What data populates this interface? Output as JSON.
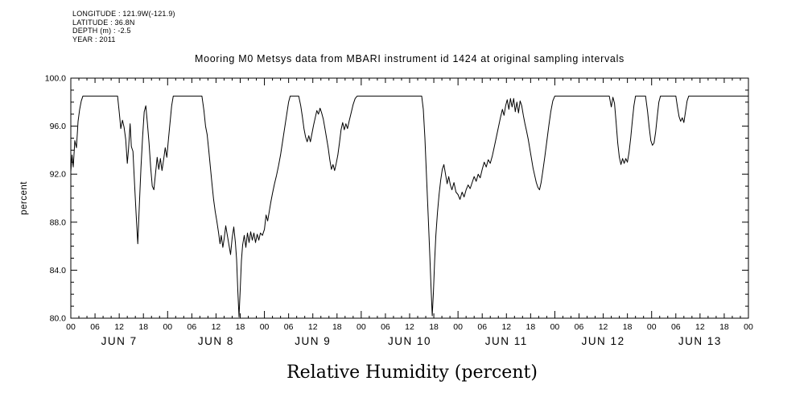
{
  "metadata": {
    "longitude": "LONGITUDE : 121.9W(-121.9)",
    "latitude": "LATITUDE : 36.8N",
    "depth": "DEPTH (m) : -2.5",
    "year": "YEAR : 2011"
  },
  "title": "Mooring M0 Metsys data from MBARI instrument id 1424 at original sampling intervals",
  "chart_data": {
    "type": "line",
    "title": "Mooring M0 Metsys data from MBARI instrument id 1424 at original sampling intervals",
    "xlabel": "Relative Humidity (percent)",
    "ylabel": "percent",
    "ylim": [
      80.0,
      100.0
    ],
    "y_ticks": [
      80,
      84,
      88,
      92,
      96,
      100
    ],
    "y_tick_labels": [
      "80.0",
      "84.0",
      "88.0",
      "92.0",
      "96.0",
      "100.0"
    ],
    "x_range_hours": [
      0,
      168
    ],
    "x_major_tick_hours": 6,
    "x_tick_labels": [
      "00",
      "06",
      "12",
      "18",
      "00",
      "06",
      "12",
      "18",
      "00",
      "06",
      "12",
      "18",
      "00",
      "06",
      "12",
      "18",
      "00",
      "06",
      "12",
      "18",
      "00",
      "06",
      "12",
      "18",
      "00",
      "06",
      "12",
      "18",
      "00"
    ],
    "day_labels": [
      "JUN 7",
      "JUN 8",
      "JUN 9",
      "JUN 10",
      "JUN 11",
      "JUN 12",
      "JUN 13"
    ],
    "grid": false,
    "legend": "none",
    "line_color": "#000000",
    "background_color": "#ffffff",
    "series": [
      {
        "name": "Relative Humidity",
        "units": "percent",
        "x_units": "hours since 2011-06-07 00:00",
        "points": [
          [
            0,
            92.2
          ],
          [
            0.3,
            93.6
          ],
          [
            0.6,
            92.6
          ],
          [
            1,
            94.8
          ],
          [
            1.4,
            94.2
          ],
          [
            1.8,
            96.4
          ],
          [
            2.2,
            97.4
          ],
          [
            2.6,
            98.1
          ],
          [
            3,
            98.5
          ],
          [
            5,
            98.5
          ],
          [
            7,
            98.5
          ],
          [
            9,
            98.5
          ],
          [
            11,
            98.5
          ],
          [
            11.6,
            98.5
          ],
          [
            12,
            97.2
          ],
          [
            12.4,
            95.8
          ],
          [
            12.8,
            96.5
          ],
          [
            13.2,
            95.9
          ],
          [
            13.6,
            94.9
          ],
          [
            14,
            92.9
          ],
          [
            14.3,
            94.1
          ],
          [
            14.7,
            96.2
          ],
          [
            15,
            94.3
          ],
          [
            15.4,
            93.9
          ],
          [
            15.8,
            91.2
          ],
          [
            16.2,
            88.6
          ],
          [
            16.6,
            86.2
          ],
          [
            17,
            89.5
          ],
          [
            17.4,
            92.6
          ],
          [
            17.8,
            95.1
          ],
          [
            18.2,
            97.2
          ],
          [
            18.6,
            97.7
          ],
          [
            19,
            96.2
          ],
          [
            19.4,
            94.6
          ],
          [
            19.8,
            92.6
          ],
          [
            20.2,
            91.0
          ],
          [
            20.6,
            90.7
          ],
          [
            21,
            92.1
          ],
          [
            21.4,
            93.4
          ],
          [
            21.8,
            92.4
          ],
          [
            22.2,
            93.3
          ],
          [
            22.6,
            92.3
          ],
          [
            23,
            93.2
          ],
          [
            23.4,
            94.2
          ],
          [
            23.8,
            93.4
          ],
          [
            24.2,
            94.9
          ],
          [
            24.6,
            96.3
          ],
          [
            25,
            97.7
          ],
          [
            25.4,
            98.5
          ],
          [
            27,
            98.5
          ],
          [
            29,
            98.5
          ],
          [
            31,
            98.5
          ],
          [
            32.5,
            98.5
          ],
          [
            33,
            97.3
          ],
          [
            33.4,
            96.0
          ],
          [
            33.8,
            95.3
          ],
          [
            34.2,
            94.0
          ],
          [
            34.6,
            92.6
          ],
          [
            35,
            91.2
          ],
          [
            35.4,
            89.9
          ],
          [
            35.8,
            88.9
          ],
          [
            36.2,
            88.1
          ],
          [
            36.6,
            87.2
          ],
          [
            37,
            86.2
          ],
          [
            37.3,
            86.9
          ],
          [
            37.7,
            85.9
          ],
          [
            38,
            86.6
          ],
          [
            38.4,
            87.7
          ],
          [
            38.8,
            86.9
          ],
          [
            39.2,
            86.1
          ],
          [
            39.6,
            85.3
          ],
          [
            40,
            86.7
          ],
          [
            40.4,
            87.6
          ],
          [
            40.8,
            86.3
          ],
          [
            41.1,
            84.9
          ],
          [
            41.4,
            82.3
          ],
          [
            41.7,
            80.1
          ],
          [
            42,
            82.4
          ],
          [
            42.3,
            84.8
          ],
          [
            42.6,
            86.1
          ],
          [
            43,
            86.9
          ],
          [
            43.4,
            85.9
          ],
          [
            43.8,
            87.1
          ],
          [
            44.2,
            86.3
          ],
          [
            44.6,
            87.2
          ],
          [
            45,
            86.5
          ],
          [
            45.4,
            87.1
          ],
          [
            45.8,
            86.3
          ],
          [
            46.2,
            87.0
          ],
          [
            46.6,
            86.5
          ],
          [
            47,
            87.1
          ],
          [
            47.5,
            86.9
          ],
          [
            48,
            87.4
          ],
          [
            48.4,
            88.6
          ],
          [
            48.8,
            88.1
          ],
          [
            49.2,
            88.9
          ],
          [
            49.6,
            89.7
          ],
          [
            50,
            90.4
          ],
          [
            50.5,
            91.2
          ],
          [
            51,
            91.9
          ],
          [
            51.5,
            92.7
          ],
          [
            52,
            93.6
          ],
          [
            52.5,
            94.7
          ],
          [
            53,
            95.8
          ],
          [
            53.5,
            96.9
          ],
          [
            54,
            98.0
          ],
          [
            54.4,
            98.5
          ],
          [
            55.5,
            98.5
          ],
          [
            56.5,
            98.5
          ],
          [
            57,
            97.7
          ],
          [
            57.4,
            96.8
          ],
          [
            57.8,
            95.8
          ],
          [
            58.2,
            95.1
          ],
          [
            58.6,
            94.7
          ],
          [
            59,
            95.2
          ],
          [
            59.4,
            94.7
          ],
          [
            59.8,
            95.4
          ],
          [
            60.2,
            96.1
          ],
          [
            60.6,
            96.7
          ],
          [
            61,
            97.3
          ],
          [
            61.4,
            97.0
          ],
          [
            61.8,
            97.5
          ],
          [
            62.2,
            97.1
          ],
          [
            62.6,
            96.6
          ],
          [
            63,
            95.8
          ],
          [
            63.4,
            95.0
          ],
          [
            63.8,
            94.2
          ],
          [
            64.2,
            93.2
          ],
          [
            64.6,
            92.4
          ],
          [
            65,
            92.8
          ],
          [
            65.4,
            92.3
          ],
          [
            65.8,
            92.9
          ],
          [
            66.2,
            93.6
          ],
          [
            66.6,
            94.6
          ],
          [
            67,
            95.7
          ],
          [
            67.4,
            96.3
          ],
          [
            67.8,
            95.7
          ],
          [
            68.2,
            96.2
          ],
          [
            68.6,
            95.8
          ],
          [
            69,
            96.4
          ],
          [
            69.5,
            97.1
          ],
          [
            70,
            97.8
          ],
          [
            70.5,
            98.3
          ],
          [
            71,
            98.5
          ],
          [
            73,
            98.5
          ],
          [
            77,
            98.5
          ],
          [
            81,
            98.5
          ],
          [
            85,
            98.5
          ],
          [
            87,
            98.5
          ],
          [
            87.4,
            97.4
          ],
          [
            87.8,
            95.0
          ],
          [
            88.2,
            91.8
          ],
          [
            88.6,
            88.5
          ],
          [
            89,
            85.2
          ],
          [
            89.3,
            82.6
          ],
          [
            89.6,
            80.2
          ],
          [
            89.9,
            82.2
          ],
          [
            90.2,
            84.8
          ],
          [
            90.5,
            86.9
          ],
          [
            90.9,
            88.8
          ],
          [
            91.3,
            90.3
          ],
          [
            91.7,
            91.5
          ],
          [
            92.1,
            92.4
          ],
          [
            92.5,
            92.8
          ],
          [
            92.9,
            92.0
          ],
          [
            93.3,
            91.2
          ],
          [
            93.7,
            91.8
          ],
          [
            94.1,
            91.1
          ],
          [
            94.5,
            90.7
          ],
          [
            95,
            91.3
          ],
          [
            95.5,
            90.5
          ],
          [
            96,
            90.3
          ],
          [
            96.5,
            89.9
          ],
          [
            97,
            90.5
          ],
          [
            97.5,
            90.1
          ],
          [
            98,
            90.7
          ],
          [
            98.5,
            91.1
          ],
          [
            99,
            90.8
          ],
          [
            99.5,
            91.3
          ],
          [
            100,
            91.8
          ],
          [
            100.5,
            91.4
          ],
          [
            101,
            92.0
          ],
          [
            101.5,
            91.7
          ],
          [
            102,
            92.4
          ],
          [
            102.5,
            93.0
          ],
          [
            103,
            92.6
          ],
          [
            103.5,
            93.2
          ],
          [
            104,
            92.9
          ],
          [
            104.5,
            93.5
          ],
          [
            105,
            94.3
          ],
          [
            105.5,
            95.1
          ],
          [
            106,
            95.9
          ],
          [
            106.5,
            96.7
          ],
          [
            107,
            97.4
          ],
          [
            107.4,
            96.9
          ],
          [
            107.8,
            97.7
          ],
          [
            108.2,
            98.2
          ],
          [
            108.6,
            97.4
          ],
          [
            109,
            98.3
          ],
          [
            109.4,
            97.6
          ],
          [
            109.8,
            98.3
          ],
          [
            110.2,
            97.2
          ],
          [
            110.6,
            98.0
          ],
          [
            111,
            97.1
          ],
          [
            111.4,
            98.1
          ],
          [
            111.8,
            97.7
          ],
          [
            112.2,
            96.9
          ],
          [
            112.6,
            96.2
          ],
          [
            113,
            95.6
          ],
          [
            113.4,
            94.9
          ],
          [
            113.8,
            94.1
          ],
          [
            114.2,
            93.3
          ],
          [
            114.6,
            92.5
          ],
          [
            115,
            91.9
          ],
          [
            115.4,
            91.3
          ],
          [
            115.8,
            90.9
          ],
          [
            116.2,
            90.7
          ],
          [
            116.6,
            91.3
          ],
          [
            117,
            92.2
          ],
          [
            117.5,
            93.4
          ],
          [
            118,
            94.7
          ],
          [
            118.5,
            96.0
          ],
          [
            119,
            97.2
          ],
          [
            119.5,
            98.1
          ],
          [
            120,
            98.5
          ],
          [
            122,
            98.5
          ],
          [
            126,
            98.5
          ],
          [
            130,
            98.5
          ],
          [
            133.5,
            98.5
          ],
          [
            134,
            97.6
          ],
          [
            134.4,
            98.4
          ],
          [
            134.8,
            97.9
          ],
          [
            135.2,
            96.3
          ],
          [
            135.6,
            94.6
          ],
          [
            136,
            93.4
          ],
          [
            136.4,
            92.8
          ],
          [
            136.8,
            93.3
          ],
          [
            137.2,
            92.9
          ],
          [
            137.6,
            93.3
          ],
          [
            138,
            93.0
          ],
          [
            138.4,
            93.8
          ],
          [
            138.8,
            95.0
          ],
          [
            139.2,
            96.4
          ],
          [
            139.6,
            97.7
          ],
          [
            140,
            98.5
          ],
          [
            141,
            98.5
          ],
          [
            142.5,
            98.5
          ],
          [
            143,
            97.2
          ],
          [
            143.4,
            95.9
          ],
          [
            143.8,
            94.8
          ],
          [
            144.2,
            94.4
          ],
          [
            144.6,
            94.6
          ],
          [
            145,
            95.5
          ],
          [
            145.4,
            96.8
          ],
          [
            145.8,
            98.0
          ],
          [
            146.2,
            98.5
          ],
          [
            147,
            98.5
          ],
          [
            148,
            98.5
          ],
          [
            149,
            98.5
          ],
          [
            150,
            98.5
          ],
          [
            150.4,
            97.6
          ],
          [
            150.8,
            96.8
          ],
          [
            151.2,
            96.4
          ],
          [
            151.6,
            96.7
          ],
          [
            152,
            96.3
          ],
          [
            152.4,
            97.2
          ],
          [
            152.8,
            98.1
          ],
          [
            153.2,
            98.5
          ],
          [
            155,
            98.5
          ],
          [
            158,
            98.5
          ],
          [
            161,
            98.5
          ],
          [
            164,
            98.5
          ],
          [
            166,
            98.5
          ],
          [
            168,
            98.5
          ]
        ]
      }
    ]
  }
}
